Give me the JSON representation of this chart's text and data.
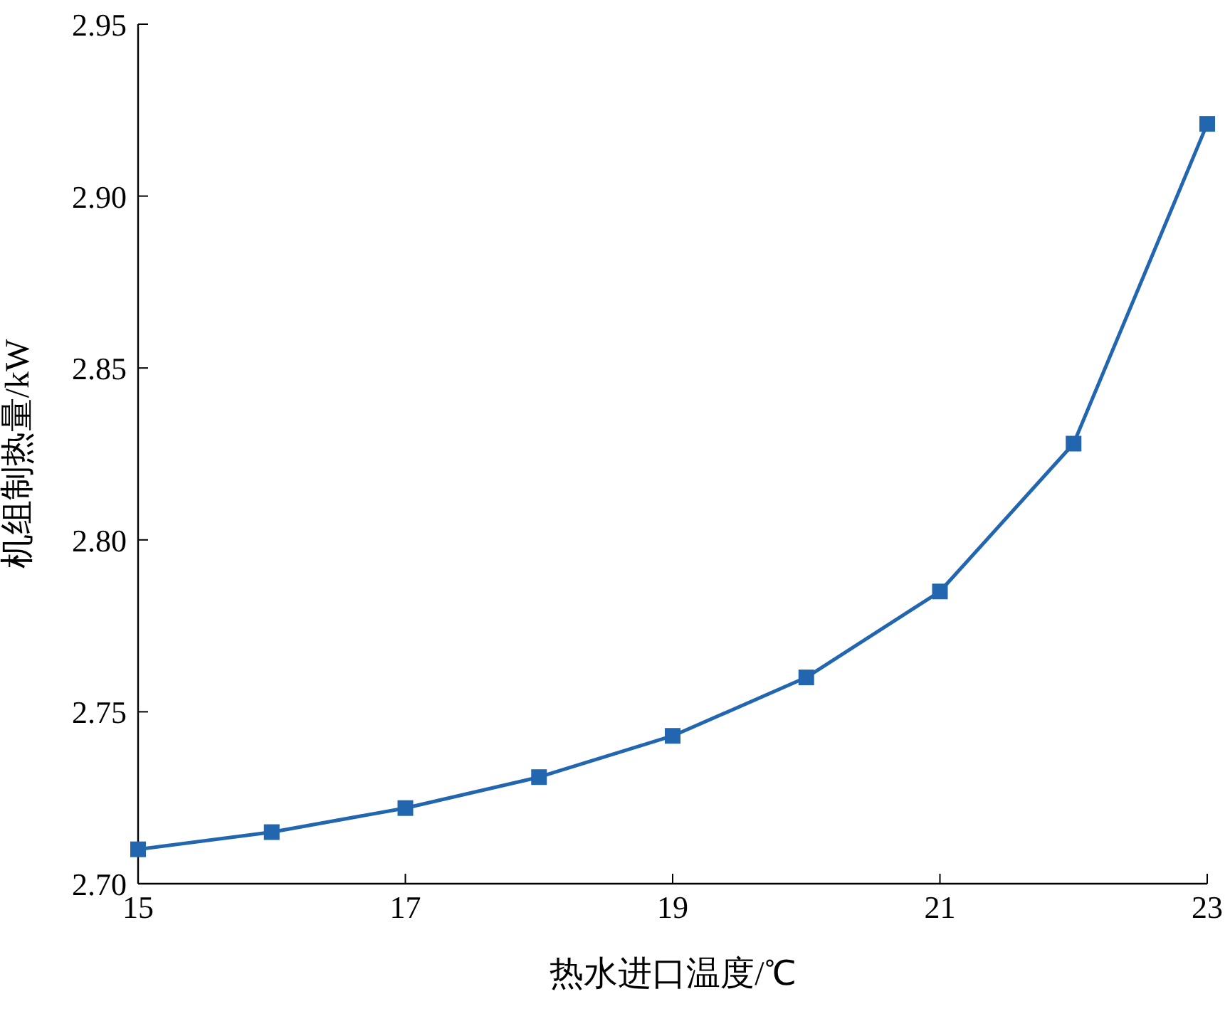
{
  "chart_data": {
    "type": "line",
    "xlabel": "热水进口温度/℃",
    "ylabel": "机组制热量/kW",
    "x": [
      15,
      16,
      17,
      18,
      19,
      20,
      21,
      22,
      23
    ],
    "series": [
      {
        "color": "#2266b0",
        "values": [
          2.71,
          2.715,
          2.722,
          2.731,
          2.743,
          2.76,
          2.785,
          2.828,
          2.921
        ]
      }
    ],
    "xlim": [
      15,
      23
    ],
    "xticks": [
      15,
      17,
      19,
      21,
      23
    ],
    "ylim": [
      2.7,
      2.95
    ],
    "yticks": [
      {
        "value": 2.7,
        "label": "2.70"
      },
      {
        "value": 2.75,
        "label": "2.75"
      },
      {
        "value": 2.8,
        "label": "2.80"
      },
      {
        "value": 2.85,
        "label": "2.85"
      },
      {
        "value": 2.9,
        "label": "2.90"
      },
      {
        "value": 2.95,
        "label": "2.95"
      }
    ],
    "grid": false,
    "marker": "square",
    "line_style": "solid"
  }
}
